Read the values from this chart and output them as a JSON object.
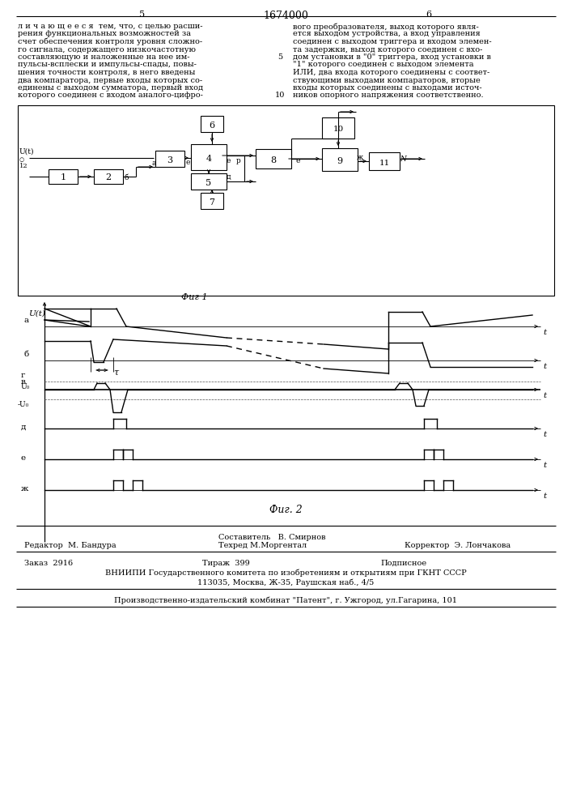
{
  "title_center": "1674000",
  "page_left": "5",
  "page_right": "6",
  "bottom_editor": "Редактор  М. Бандура",
  "bottom_composer": "Составитель   В. Смирнов",
  "bottom_tech": "Техред М.Моргентал",
  "bottom_corrector": "Корректор  Э. Лончакова",
  "bottom_order": "Заказ  2916",
  "bottom_tirazh": "Тираж  399",
  "bottom_podpisnoe": "Подписное",
  "bottom_vniiipi": "ВНИИПИ Государственного комитета по изобретениям и открытиям при ГКНТ СССР",
  "bottom_address": "113035, Москва, Ж-35, Раушская наб., 4/5",
  "bottom_factory": "Производственно-издательский комбинат \"Патент\", г. Ужгород, ул.Гагарина, 101",
  "bg_color": "#ffffff"
}
